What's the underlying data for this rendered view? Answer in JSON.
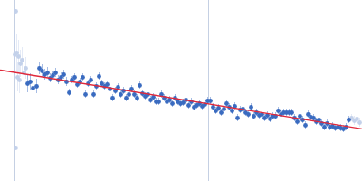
{
  "chart_data": {
    "type": "scatter",
    "xlim": [
      0,
      400
    ],
    "ylim": [
      0,
      200
    ],
    "xticks": [],
    "yticks": [],
    "tick_labels": false,
    "grid": false,
    "x_markers": [
      16,
      230
    ],
    "marker_color": "#c5d0e3",
    "series": [
      {
        "type": "scatter",
        "marker": "circle",
        "color": "#c3d1ea",
        "x": [
          17,
          17,
          16,
          18,
          20,
          22,
          24,
          26,
          28,
          19,
          21,
          388,
          391,
          394,
          397
        ],
        "values": [
          188,
          37,
          140,
          142,
          138,
          130,
          134,
          120,
          125,
          115,
          112,
          70,
          67,
          69,
          65
        ],
        "errors": [
          2,
          2,
          25,
          20,
          18,
          15,
          14,
          12,
          12,
          16,
          15,
          4,
          5,
          5,
          5
        ]
      },
      {
        "type": "scatter",
        "marker": "circle",
        "color": "#3a6bc0",
        "x": [
          30,
          33,
          36,
          40,
          43,
          46,
          49,
          52,
          55,
          58,
          61,
          64,
          67,
          70,
          73,
          76,
          79,
          82,
          85,
          88,
          91,
          94,
          97,
          100,
          103,
          106,
          109,
          112,
          115,
          118,
          121,
          124,
          127,
          130,
          133,
          136,
          139,
          142,
          145,
          148,
          151,
          154,
          157,
          160,
          163,
          166,
          169,
          172,
          175,
          178,
          181,
          184,
          187,
          190,
          193,
          196,
          199,
          202,
          205,
          208,
          211,
          214,
          217,
          220,
          223,
          226,
          229,
          232,
          235,
          238,
          241,
          244,
          247,
          250,
          253,
          256,
          259,
          262,
          265,
          268,
          271,
          274,
          277,
          280,
          283,
          286,
          289,
          292,
          295,
          298,
          301,
          304,
          307,
          310,
          313,
          316,
          319,
          322,
          325,
          328,
          331,
          334,
          337,
          340,
          343,
          346,
          349,
          352,
          355,
          358,
          361,
          364,
          367,
          370,
          373,
          376,
          379,
          382,
          385
        ],
        "values": [
          108,
          110,
          103,
          105,
          125,
          122,
          118,
          120,
          114,
          117,
          120,
          112,
          115,
          118,
          110,
          98,
          112,
          115,
          107,
          110,
          115,
          96,
          108,
          112,
          96,
          105,
          116,
          108,
          105,
          107,
          102,
          92,
          100,
          104,
          96,
          100,
          92,
          96,
          102,
          96,
          92,
          106,
          97,
          94,
          96,
          90,
          93,
          88,
          88,
          96,
          92,
          88,
          90,
          86,
          92,
          88,
          86,
          87,
          90,
          84,
          88,
          82,
          84,
          86,
          83,
          85,
          89,
          89,
          82,
          78,
          81,
          76,
          80,
          86,
          82,
          78,
          83,
          70,
          79,
          80,
          76,
          74,
          82,
          72,
          76,
          73,
          74,
          70,
          73,
          69,
          72,
          72,
          78,
          74,
          76,
          76,
          76,
          76,
          70,
          66,
          72,
          68,
          62,
          74,
          71,
          70,
          66,
          68,
          64,
          60,
          64,
          60,
          61,
          59,
          60,
          59,
          58,
          60,
          68
        ],
        "errors": [
          10,
          9,
          9,
          8,
          7,
          7,
          6,
          6,
          5,
          5,
          5,
          5,
          5,
          5,
          5,
          4,
          4,
          4,
          4,
          4,
          4,
          4,
          4,
          4,
          4,
          4,
          4,
          4,
          4,
          4,
          4,
          4,
          4,
          4,
          4,
          4,
          4,
          4,
          4,
          4,
          4,
          4,
          4,
          4,
          4,
          4,
          4,
          4,
          4,
          4,
          4,
          4,
          4,
          4,
          4,
          4,
          4,
          4,
          4,
          4,
          4,
          4,
          4,
          4,
          4,
          4,
          4,
          4,
          4,
          4,
          4,
          4,
          4,
          4,
          4,
          4,
          4,
          4,
          4,
          4,
          4,
          4,
          4,
          4,
          4,
          4,
          4,
          4,
          4,
          4,
          4,
          4,
          4,
          4,
          4,
          4,
          4,
          4,
          4,
          4,
          4,
          4,
          4,
          4,
          4,
          4,
          4,
          4,
          4,
          4,
          4,
          4,
          4,
          4,
          4,
          4,
          4,
          4,
          4
        ]
      },
      {
        "type": "line",
        "line_style": "solid",
        "color": "#e0283a",
        "x": [
          0,
          400
        ],
        "values": [
          123,
          58
        ]
      }
    ]
  }
}
